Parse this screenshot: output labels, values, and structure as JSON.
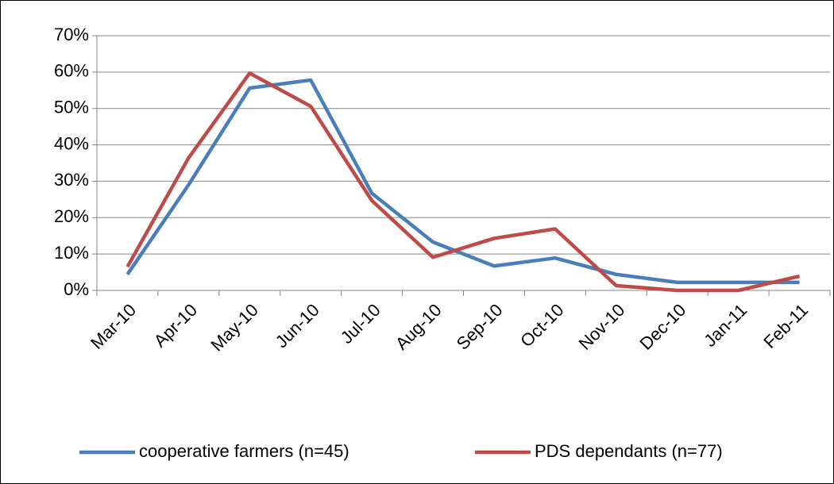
{
  "chart_data": {
    "type": "line",
    "categories": [
      "Mar-10",
      "Apr-10",
      "May-10",
      "Jun-10",
      "Jul-10",
      "Aug-10",
      "Sep-10",
      "Oct-10",
      "Nov-10",
      "Dec-10",
      "Jan-11",
      "Feb-11"
    ],
    "series": [
      {
        "name": "cooperative farmers (n=45)",
        "color": "#4a7ebb",
        "values": [
          4.4,
          29,
          55.6,
          57.8,
          26.7,
          13.3,
          6.7,
          8.9,
          4.4,
          2.2,
          2.2,
          2.2
        ]
      },
      {
        "name": "PDS dependants (n=77)",
        "color": "#be4b48",
        "values": [
          6.5,
          36.4,
          59.7,
          50.6,
          24.7,
          9.1,
          14.3,
          16.9,
          1.3,
          0,
          0,
          3.9
        ]
      }
    ],
    "ylim": [
      0,
      70
    ],
    "yticks": [
      {
        "value": 0,
        "label": "0%"
      },
      {
        "value": 10,
        "label": "10%"
      },
      {
        "value": 20,
        "label": "20%"
      },
      {
        "value": 30,
        "label": "30%"
      },
      {
        "value": 40,
        "label": "40%"
      },
      {
        "value": 50,
        "label": "50%"
      },
      {
        "value": 60,
        "label": "60%"
      },
      {
        "value": 70,
        "label": "70%"
      }
    ],
    "grid": true,
    "legend": "bottom"
  }
}
